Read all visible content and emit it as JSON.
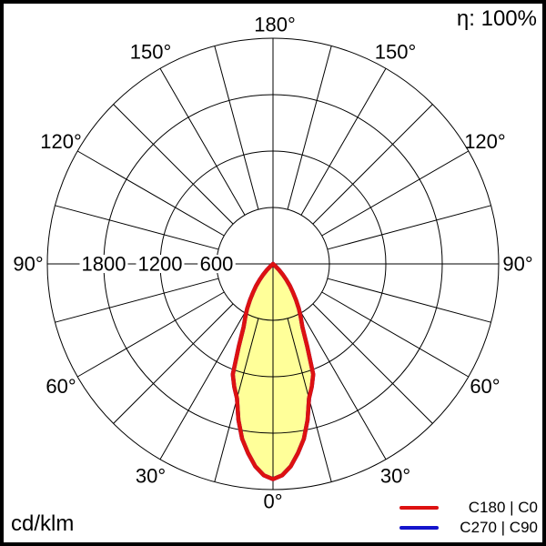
{
  "efficiency_label": "η: 100%",
  "unit_label": "cd/klm",
  "legend": {
    "items": [
      {
        "label": "C180 | C0",
        "color": "#dd1111"
      },
      {
        "label": "C270 | C90",
        "color": "#1414cc"
      }
    ]
  },
  "chart_data": {
    "type": "polar-line",
    "description": "Luminous intensity distribution curve (polar photometric diagram)",
    "unit": "cd/klm",
    "efficiency_text": "η: 100%",
    "grid": {
      "ring_values": [
        600,
        1200,
        1800,
        2400
      ],
      "ring_tick_labels": [
        {
          "value": 600,
          "text": "600"
        },
        {
          "value": 1200,
          "text": "1200"
        },
        {
          "value": 1800,
          "text": "1800"
        }
      ],
      "spoke_step_deg": 15,
      "angle_labels": [
        {
          "gamma": 0,
          "text": "0°"
        },
        {
          "gamma": 30,
          "text": "30°"
        },
        {
          "gamma": 60,
          "text": "60°"
        },
        {
          "gamma": 90,
          "text": "90°"
        },
        {
          "gamma": 120,
          "text": "120°"
        },
        {
          "gamma": 150,
          "text": "150°"
        }
      ],
      "top_label": {
        "gamma": 180,
        "text": "180°"
      }
    },
    "series": [
      {
        "name": "C180 | C0",
        "color": "#dd1111",
        "fill_color": "#ffff99",
        "points_gamma_deg_vs_cd_per_klm": [
          [
            0,
            2290
          ],
          [
            2.5,
            2250
          ],
          [
            5,
            2160
          ],
          [
            7.5,
            2030
          ],
          [
            10,
            1890
          ],
          [
            12.5,
            1700
          ],
          [
            15,
            1480
          ],
          [
            17.5,
            1370
          ],
          [
            20,
            1250
          ],
          [
            22.5,
            950
          ],
          [
            25,
            740
          ],
          [
            27.5,
            640
          ],
          [
            30,
            550
          ],
          [
            32.5,
            455
          ],
          [
            35,
            370
          ],
          [
            37.5,
            295
          ],
          [
            40,
            220
          ],
          [
            42.5,
            150
          ],
          [
            45,
            90
          ],
          [
            47.5,
            40
          ],
          [
            50,
            0
          ],
          [
            60,
            0
          ],
          [
            90,
            0
          ],
          [
            120,
            0
          ],
          [
            150,
            0
          ],
          [
            180,
            0
          ]
        ]
      },
      {
        "name": "C270 | C90",
        "color": "#1414cc",
        "fill_color": "none",
        "points_gamma_deg_vs_cd_per_klm": [
          [
            0,
            2290
          ],
          [
            2.5,
            2250
          ],
          [
            5,
            2160
          ],
          [
            7.5,
            2030
          ],
          [
            10,
            1890
          ],
          [
            12.5,
            1700
          ],
          [
            15,
            1480
          ],
          [
            17.5,
            1370
          ],
          [
            20,
            1250
          ],
          [
            22.5,
            950
          ],
          [
            25,
            740
          ],
          [
            27.5,
            640
          ],
          [
            30,
            550
          ],
          [
            32.5,
            455
          ],
          [
            35,
            370
          ],
          [
            37.5,
            295
          ],
          [
            40,
            220
          ],
          [
            42.5,
            150
          ],
          [
            45,
            90
          ],
          [
            47.5,
            40
          ],
          [
            50,
            0
          ],
          [
            60,
            0
          ],
          [
            90,
            0
          ],
          [
            120,
            0
          ],
          [
            150,
            0
          ],
          [
            180,
            0
          ]
        ]
      }
    ]
  }
}
